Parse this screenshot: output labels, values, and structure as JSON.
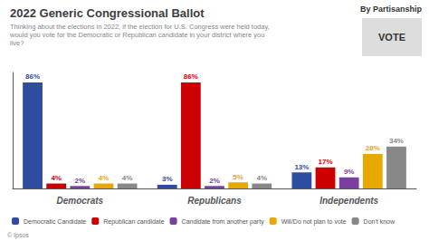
{
  "chart_data": {
    "type": "bar",
    "title": "2022 Generic Congressional Ballot",
    "subtitle": "Thinking about the elections in 2022, if the election for U.S. Congress were held today,\nwould you vote for the Democratic or Republican candidate in your district where you\nlive?",
    "annotations": [
      "By Partisanship",
      "VOTE",
      "© Ipsos"
    ],
    "categories": [
      "Democrats",
      "Republicans",
      "Independents"
    ],
    "series": [
      {
        "name": "Democratic Candidate",
        "color": "#2e4da0",
        "values": [
          86,
          3,
          13
        ],
        "value_labels": [
          "86%",
          "3%",
          "13%"
        ]
      },
      {
        "name": "Republican candidate",
        "color": "#cc0000",
        "values": [
          4,
          86,
          17
        ],
        "value_labels": [
          "4%",
          "86%",
          "17%"
        ]
      },
      {
        "name": "Candidate from another party",
        "color": "#7b3fa0",
        "values": [
          2,
          2,
          9
        ],
        "value_labels": [
          "2%",
          "2%",
          "9%"
        ]
      },
      {
        "name": "Will/Do not plan to vote",
        "color": "#e8a800",
        "values": [
          4,
          5,
          28
        ],
        "value_labels": [
          "4%",
          "5%",
          "28%"
        ]
      },
      {
        "name": "Don't know",
        "color": "#888888",
        "values": [
          4,
          4,
          34
        ],
        "value_labels": [
          "4%",
          "4%",
          "34%"
        ]
      }
    ],
    "ylim": [
      0,
      94
    ],
    "grid": false,
    "legend": "bottom",
    "data_labels": true,
    "tick_labels": "x"
  }
}
